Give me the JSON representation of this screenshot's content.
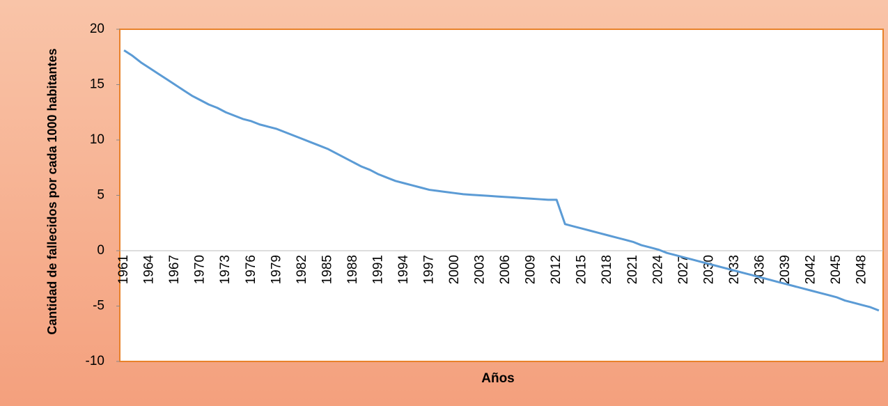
{
  "chart_data": {
    "type": "line",
    "x_label": "Años",
    "y_label": "Cantidad de fallecidos por cada 1000 habitantes",
    "categories": [
      "1961",
      null,
      null,
      "1964",
      null,
      null,
      "1967",
      null,
      null,
      "1970",
      null,
      null,
      "1973",
      null,
      null,
      "1976",
      null,
      null,
      "1979",
      null,
      null,
      "1982",
      null,
      null,
      "1985",
      null,
      null,
      "1988",
      null,
      null,
      "1991",
      null,
      null,
      "1994",
      null,
      null,
      "1997",
      null,
      null,
      "2000",
      null,
      null,
      "2003",
      null,
      null,
      "2006",
      null,
      null,
      "2009",
      null,
      null,
      "2012",
      null,
      null,
      "2015",
      null,
      null,
      "2018",
      null,
      null,
      "2021",
      null,
      null,
      "2024",
      null,
      null,
      "2027",
      null,
      null,
      "2030",
      null,
      null,
      "2033",
      null,
      null,
      "2036",
      null,
      null,
      "2039",
      null,
      null,
      "2042",
      null,
      null,
      "2045",
      null,
      null,
      "2048",
      null,
      null
    ],
    "values": [
      18.1,
      17.6,
      17.0,
      16.5,
      16.0,
      15.5,
      15.0,
      14.5,
      14.0,
      13.6,
      13.2,
      12.9,
      12.5,
      12.2,
      11.9,
      11.7,
      11.4,
      11.2,
      11.0,
      10.7,
      10.4,
      10.1,
      9.8,
      9.5,
      9.2,
      8.8,
      8.4,
      8.0,
      7.6,
      7.3,
      6.9,
      6.6,
      6.3,
      6.1,
      5.9,
      5.7,
      5.5,
      5.4,
      5.3,
      5.2,
      5.1,
      5.05,
      5.0,
      4.95,
      4.9,
      4.85,
      4.8,
      4.75,
      4.7,
      4.65,
      4.6,
      4.6,
      2.4,
      2.2,
      2.0,
      1.8,
      1.6,
      1.4,
      1.2,
      1.0,
      0.8,
      0.5,
      0.3,
      0.1,
      -0.2,
      -0.4,
      -0.6,
      -0.8,
      -1.0,
      -1.2,
      -1.4,
      -1.6,
      -1.8,
      -2.0,
      -2.2,
      -2.4,
      -2.6,
      -2.8,
      -3.0,
      -3.2,
      -3.4,
      -3.6,
      -3.8,
      -4.0,
      -4.2,
      -4.5,
      -4.7,
      -4.9,
      -5.1,
      -5.4
    ],
    "color": "#5b9bd5",
    "ylim": [
      -10,
      20
    ],
    "yticks": [
      -10,
      -5,
      0,
      5,
      10,
      15,
      20
    ],
    "grid": false
  }
}
